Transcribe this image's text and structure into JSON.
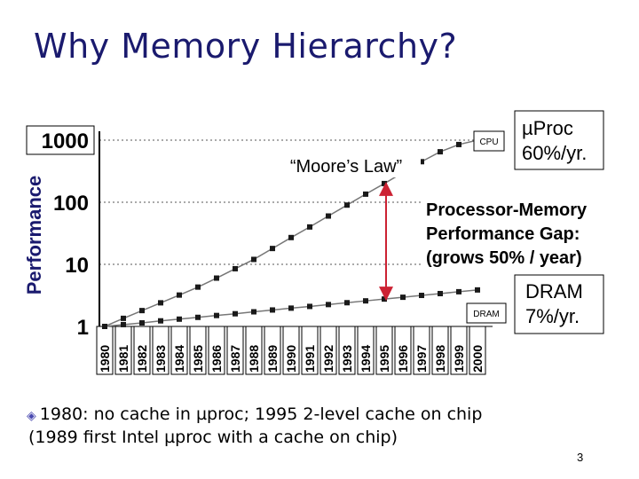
{
  "slide": {
    "title": "Why Memory Hierarchy?",
    "page_number": "3",
    "bullet_line1": "1980: no cache in µproc; 1995 2-level cache on chip",
    "bullet_line2": "(1989 first Intel µproc with a cache on chip)"
  },
  "chart_data": {
    "type": "line",
    "ylabel": "Performance",
    "yscale": "log",
    "ylim": [
      1,
      1000
    ],
    "ytick_labels": [
      "1",
      "10",
      "100",
      "1000"
    ],
    "yticks": [
      1,
      10,
      100,
      1000
    ],
    "categories": [
      "1980",
      "1981",
      "1982",
      "1983",
      "1984",
      "1985",
      "1986",
      "1987",
      "1988",
      "1989",
      "1990",
      "1991",
      "1992",
      "1993",
      "1994",
      "1995",
      "1996",
      "1997",
      "1998",
      "1999",
      "2000"
    ],
    "series": [
      {
        "name": "CPU",
        "color": "#1a1a1a",
        "values": [
          1,
          1.35,
          1.8,
          2.4,
          3.2,
          4.3,
          6,
          8.5,
          12,
          18,
          27,
          40,
          60,
          90,
          135,
          200,
          300,
          450,
          650,
          850,
          1000
        ]
      },
      {
        "name": "DRAM",
        "color": "#1a1a1a",
        "values": [
          1,
          1.07,
          1.14,
          1.23,
          1.31,
          1.4,
          1.5,
          1.6,
          1.72,
          1.84,
          1.97,
          2.1,
          2.25,
          2.41,
          2.58,
          2.76,
          2.95,
          3.16,
          3.38,
          3.62,
          3.87
        ]
      }
    ],
    "annotations": {
      "moores_law": "“Moore’s Law”",
      "proc_rate_line1": "µProc",
      "proc_rate_line2": "60%/yr.",
      "gap_line1": "Processor-Memory",
      "gap_line2": "Performance Gap:",
      "gap_line3": "(grows 50% / year)",
      "dram_rate_line1": "DRAM",
      "dram_rate_line2": "7%/yr."
    },
    "gap_arrow_year": "1995",
    "grid": "dotted horizontal at major ticks",
    "accent_color": "#cc2233"
  }
}
